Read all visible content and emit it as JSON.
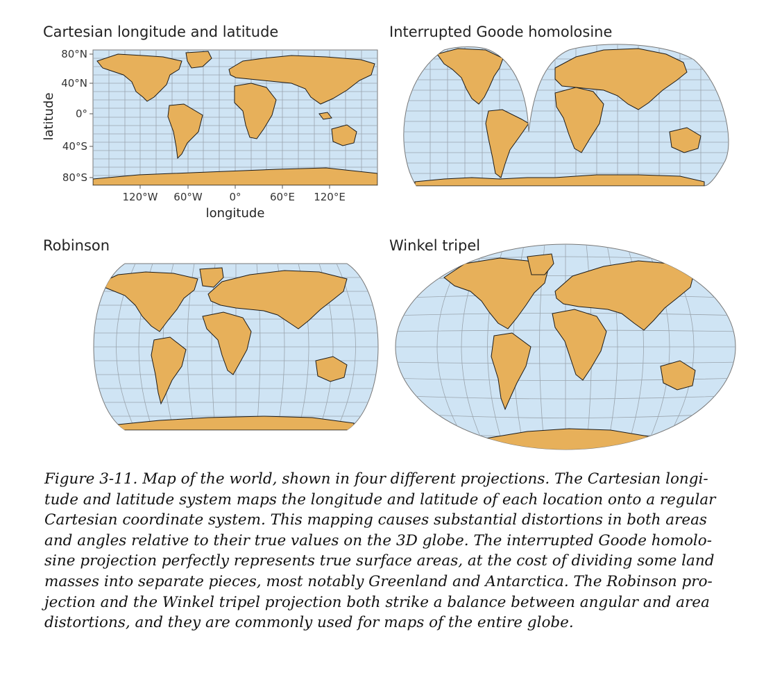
{
  "colors": {
    "ocean": "#cfe4f4",
    "land": "#e7b05a",
    "border": "#1a1a1a",
    "grid": "#9aa4ad"
  },
  "panels": {
    "cartesian": {
      "title": "Cartesian longitude and latitude",
      "y_axis_title": "latitude",
      "x_axis_title": "longitude",
      "y_ticks": [
        "80°N",
        "40°N",
        "0°",
        "40°S",
        "80°S"
      ],
      "x_ticks": [
        "120°W",
        "60°W",
        "0°",
        "60°E",
        "120°E"
      ]
    },
    "goode": {
      "title": "Interrupted Goode homolosine"
    },
    "robinson": {
      "title": "Robinson"
    },
    "winkel": {
      "title": "Winkel tripel"
    }
  },
  "caption": {
    "lines": [
      "Figure 3-11. Map of the world, shown in four different projections. The Cartesian longi-",
      "tude and latitude system maps the longitude and latitude of each location onto a regular",
      "Cartesian coordinate system. This mapping causes substantial distortions in both areas",
      "and angles relative to their true values on the 3D globe. The interrupted Goode homolo-",
      "sine projection perfectly represents true surface areas, at the cost of dividing some land",
      "masses into separate pieces, most notably Greenland and Antarctica. The Robinson pro-",
      "jection and the Winkel tripel projection both strike a balance between angular and area",
      "distortions, and they are commonly used for maps of the entire globe."
    ]
  }
}
